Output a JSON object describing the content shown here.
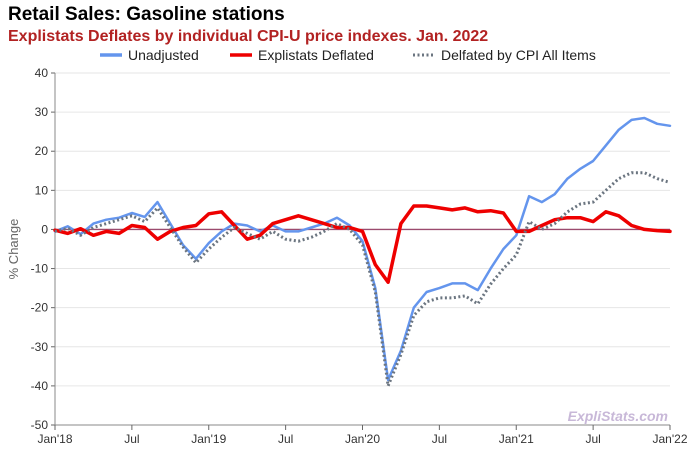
{
  "chart_data": {
    "type": "line",
    "title": "Retail Sales: Gasoline stations",
    "subtitle": "Explistats Deflates by individual CPI-U price indexes. Jan. 2022",
    "ylabel": "% Change",
    "xlabel": "",
    "ylim": [
      -50,
      40
    ],
    "yticks": [
      40,
      30,
      20,
      10,
      0,
      -10,
      -20,
      -30,
      -40,
      -50
    ],
    "x_start": "2018-01",
    "x_end": "2022-01",
    "xticks": [
      {
        "date": "2018-01",
        "label": "Jan'18"
      },
      {
        "date": "2018-07",
        "label": "Jul"
      },
      {
        "date": "2019-01",
        "label": "Jan'19"
      },
      {
        "date": "2019-07",
        "label": "Jul"
      },
      {
        "date": "2020-01",
        "label": "Jan'20"
      },
      {
        "date": "2020-07",
        "label": "Jul"
      },
      {
        "date": "2021-01",
        "label": "Jan'21"
      },
      {
        "date": "2021-07",
        "label": "Jul"
      },
      {
        "date": "2022-01",
        "label": "Jan'22"
      }
    ],
    "grid": true,
    "zero_line": true,
    "legend_position": "top",
    "x": [
      "2018-01",
      "2018-02",
      "2018-03",
      "2018-04",
      "2018-05",
      "2018-06",
      "2018-07",
      "2018-08",
      "2018-09",
      "2018-10",
      "2018-11",
      "2018-12",
      "2019-01",
      "2019-02",
      "2019-03",
      "2019-04",
      "2019-05",
      "2019-06",
      "2019-07",
      "2019-08",
      "2019-09",
      "2019-10",
      "2019-11",
      "2019-12",
      "2020-01",
      "2020-02",
      "2020-03",
      "2020-04",
      "2020-05",
      "2020-06",
      "2020-07",
      "2020-08",
      "2020-09",
      "2020-10",
      "2020-11",
      "2020-12",
      "2021-01",
      "2021-02",
      "2021-03",
      "2021-04",
      "2021-05",
      "2021-06",
      "2021-07",
      "2021-08",
      "2021-09",
      "2021-10",
      "2021-11",
      "2021-12",
      "2022-01"
    ],
    "series": [
      {
        "name": "Unadjusted",
        "color": "#6495ED",
        "style": "solid",
        "values": [
          -0.5,
          0.8,
          -1.2,
          1.5,
          2.5,
          3.0,
          4.2,
          3.2,
          7.0,
          1.5,
          -4.0,
          -7.5,
          -3.5,
          -0.5,
          1.5,
          1.0,
          -0.5,
          1.0,
          -0.5,
          -0.5,
          0.5,
          1.5,
          3.0,
          1.0,
          -3.0,
          -15.0,
          -38.5,
          -31.0,
          -20.0,
          -16.0,
          -15.0,
          -13.8,
          -13.8,
          -15.5,
          -10.0,
          -5.0,
          -1.5,
          8.5,
          7.0,
          9.0,
          13.0,
          15.5,
          17.5,
          21.5,
          25.5,
          28.0,
          28.5,
          27.0,
          26.5
        ]
      },
      {
        "name": "Explistats Deflated",
        "color": "#EE0000",
        "style": "solid",
        "values": [
          -0.2,
          -1.0,
          0.2,
          -1.5,
          -0.5,
          -1.0,
          1.0,
          0.5,
          -2.5,
          -0.5,
          0.5,
          1.0,
          4.0,
          4.5,
          1.0,
          -2.5,
          -1.5,
          1.5,
          2.5,
          3.5,
          2.5,
          1.5,
          0.5,
          0.5,
          -0.5,
          -9.0,
          -13.5,
          1.5,
          6.0,
          6.0,
          5.5,
          5.0,
          5.5,
          4.5,
          4.8,
          4.2,
          -0.5,
          -0.5,
          1.0,
          2.5,
          3.0,
          3.0,
          2.0,
          4.5,
          3.5,
          1.0,
          0.0,
          -0.3,
          -0.5
        ]
      },
      {
        "name": "Delfated by CPI All Items",
        "color": "#6b7580",
        "style": "dotted",
        "values": [
          -0.5,
          0.3,
          -1.5,
          0.5,
          1.5,
          2.5,
          3.5,
          2.0,
          5.5,
          0.5,
          -4.5,
          -8.5,
          -5.0,
          -2.0,
          0.5,
          -1.0,
          -2.5,
          -0.5,
          -2.5,
          -3.0,
          -2.0,
          -0.5,
          1.5,
          0.0,
          -4.0,
          -16.0,
          -40.0,
          -32.0,
          -22.0,
          -18.5,
          -17.5,
          -17.5,
          -17.0,
          -19.0,
          -14.0,
          -10.0,
          -6.5,
          2.0,
          0.0,
          1.5,
          4.5,
          6.5,
          7.0,
          10.0,
          13.0,
          14.5,
          14.5,
          13.0,
          12.0
        ]
      }
    ],
    "watermark": "ExpliStats.com"
  }
}
